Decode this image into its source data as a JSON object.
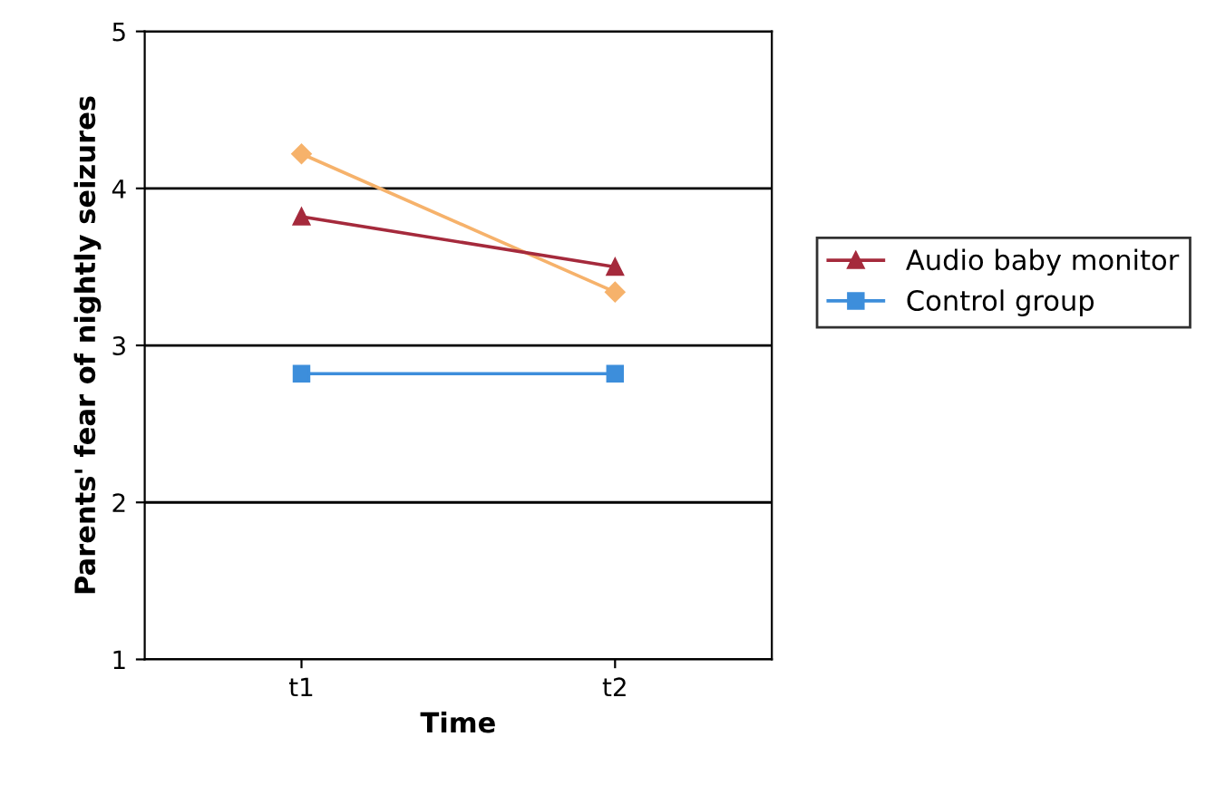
{
  "chart_data": {
    "type": "line",
    "xlabel": "Time",
    "ylabel": "Parents' fear of nightly seizures",
    "categories": [
      "t1",
      "t2"
    ],
    "series": [
      {
        "color": "#f6b26b",
        "marker": "diamond",
        "values": [
          4.22,
          3.34
        ]
      },
      {
        "name": "Audio baby monitor",
        "color": "#a52a3c",
        "marker": "triangle",
        "values": [
          3.82,
          3.5
        ]
      },
      {
        "name": "Control group",
        "color": "#3d8edb",
        "marker": "square",
        "values": [
          2.82,
          2.82
        ]
      }
    ],
    "ylim": [
      1,
      5
    ],
    "yticks": [
      1,
      2,
      3,
      4,
      5
    ],
    "grid": "y",
    "legend": "right"
  }
}
